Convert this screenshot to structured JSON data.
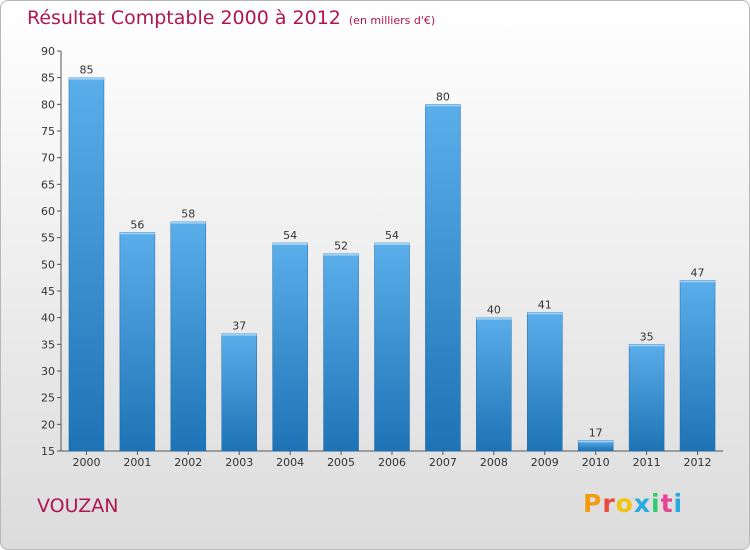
{
  "header": {
    "title": "Résultat Comptable 2000 à 2012",
    "unit": "(en milliers d'€)"
  },
  "footer": {
    "commune": "VOUZAN",
    "logo": [
      "P",
      "r",
      "o",
      "x",
      "i",
      "t",
      "i"
    ]
  },
  "colors": {
    "title": "#b0164f",
    "bar_top": "#5aaeea",
    "bar_bottom": "#1e73b6",
    "logo": [
      "#f39c12",
      "#e74c3c",
      "#f1c40f",
      "#27a9e1",
      "#2ecc71",
      "#e84393",
      "#27a9e1"
    ]
  },
  "chart_data": {
    "type": "bar",
    "categories": [
      "2000",
      "2001",
      "2002",
      "2003",
      "2004",
      "2005",
      "2006",
      "2007",
      "2008",
      "2009",
      "2010",
      "2011",
      "2012"
    ],
    "values": [
      85,
      56,
      58,
      37,
      54,
      52,
      54,
      80,
      40,
      41,
      17,
      35,
      47
    ],
    "ylim": [
      15,
      90
    ],
    "yticks": [
      15,
      20,
      25,
      30,
      35,
      40,
      45,
      50,
      55,
      60,
      65,
      70,
      75,
      80,
      85,
      90
    ],
    "grid": false
  }
}
